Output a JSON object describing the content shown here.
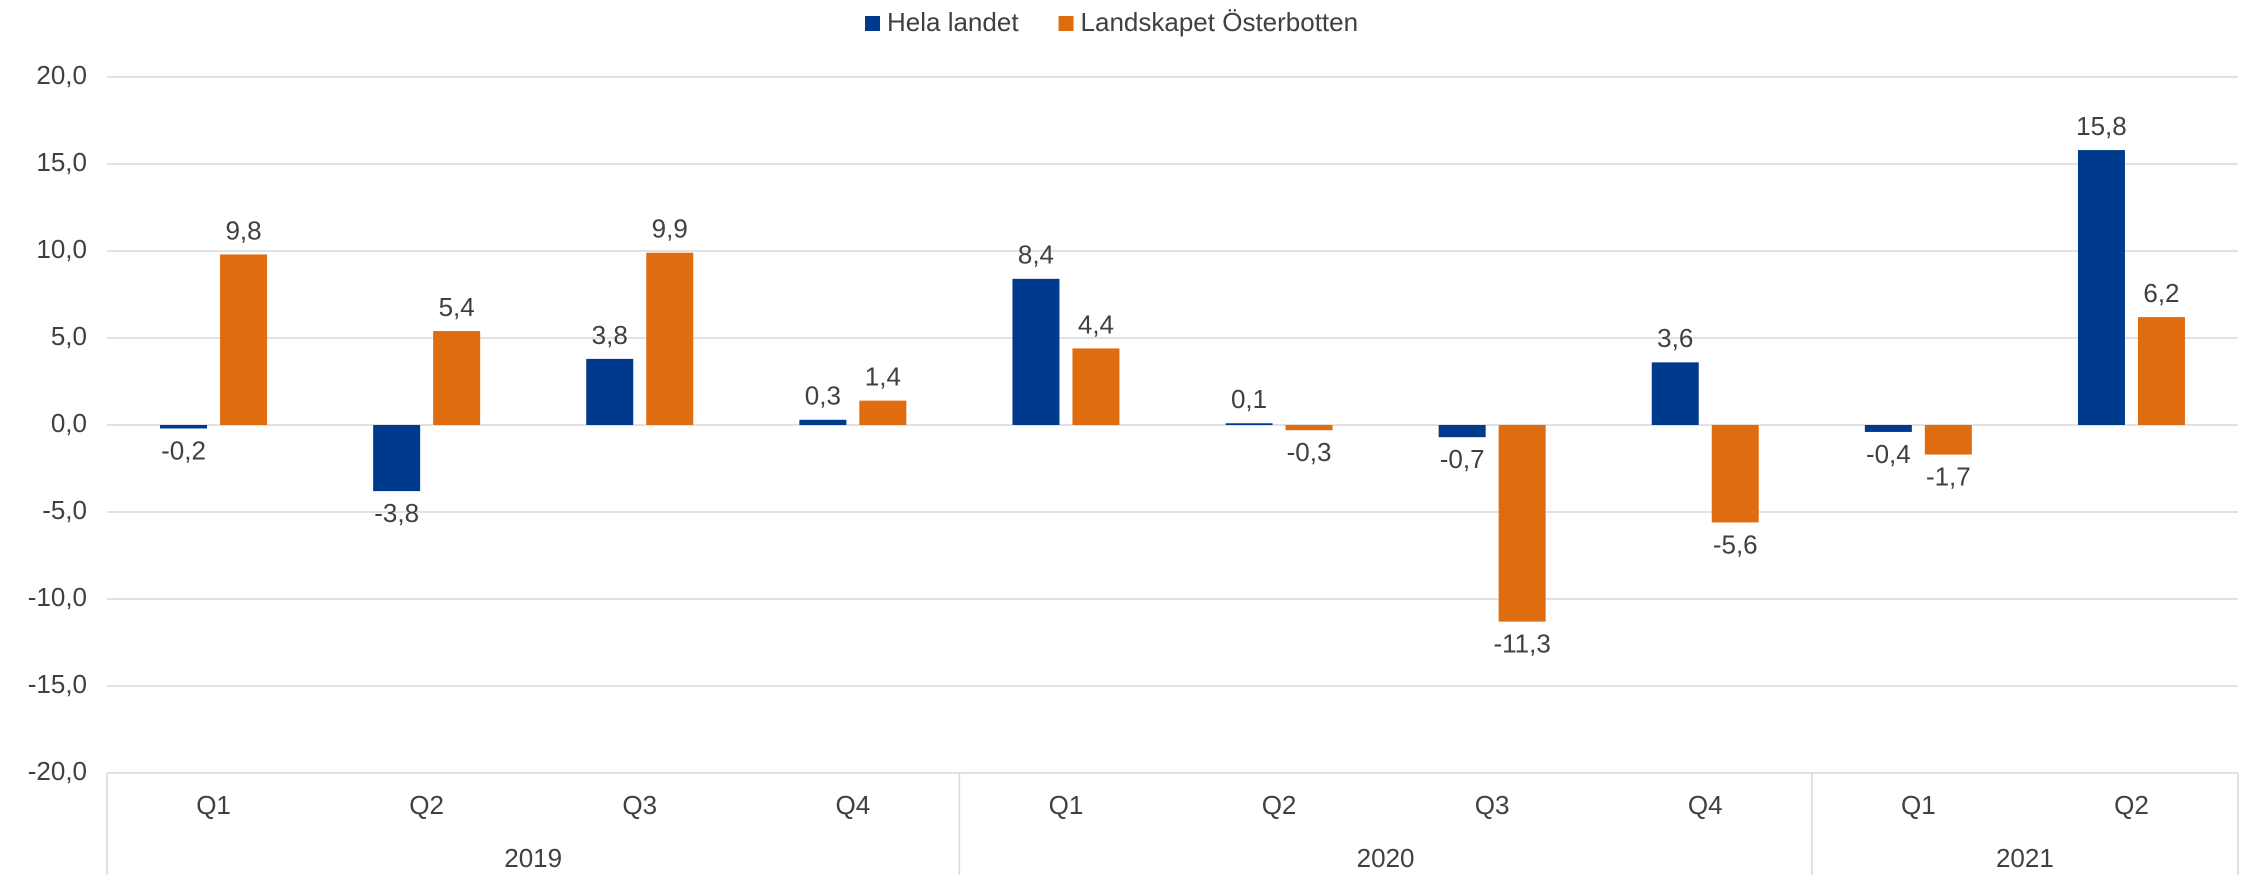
{
  "chart_data": {
    "type": "bar",
    "groups": [
      {
        "name": "2019",
        "categories": [
          "Q1",
          "Q2",
          "Q3",
          "Q4"
        ]
      },
      {
        "name": "2020",
        "categories": [
          "Q1",
          "Q2",
          "Q3",
          "Q4"
        ]
      },
      {
        "name": "2021",
        "categories": [
          "Q1",
          "Q2"
        ]
      }
    ],
    "series": [
      {
        "name": "Hela landet",
        "color": "#003a8c",
        "values": [
          -0.2,
          -3.8,
          3.8,
          0.3,
          8.4,
          0.1,
          -0.7,
          3.6,
          -0.4,
          15.8
        ],
        "value_labels": [
          "-0,2",
          "-3,8",
          "3,8",
          "0,3",
          "8,4",
          "0,1",
          "-0,7",
          "3,6",
          "-0,4",
          "15,8"
        ]
      },
      {
        "name": "Landskapet Österbotten",
        "color": "#e06c10",
        "values": [
          9.8,
          5.4,
          9.9,
          1.4,
          4.4,
          -0.3,
          -11.3,
          -5.6,
          -1.7,
          6.2
        ],
        "value_labels": [
          "9,8",
          "5,4",
          "9,9",
          "1,4",
          "4,4",
          "-0,3",
          "-11,3",
          "-5,6",
          "-1,7",
          "6,2"
        ]
      }
    ],
    "ylim": [
      -20,
      20
    ],
    "yticks": [
      {
        "value": -20,
        "label": "-20,0"
      },
      {
        "value": -15,
        "label": "-15,0"
      },
      {
        "value": -10,
        "label": "-10,0"
      },
      {
        "value": -5,
        "label": "-5,0"
      },
      {
        "value": 0,
        "label": "0,0"
      },
      {
        "value": 5,
        "label": "5,0"
      },
      {
        "value": 10,
        "label": "10,0"
      },
      {
        "value": 15,
        "label": "15,0"
      },
      {
        "value": 20,
        "label": "20,0"
      }
    ],
    "grid": true,
    "legend": "top"
  }
}
